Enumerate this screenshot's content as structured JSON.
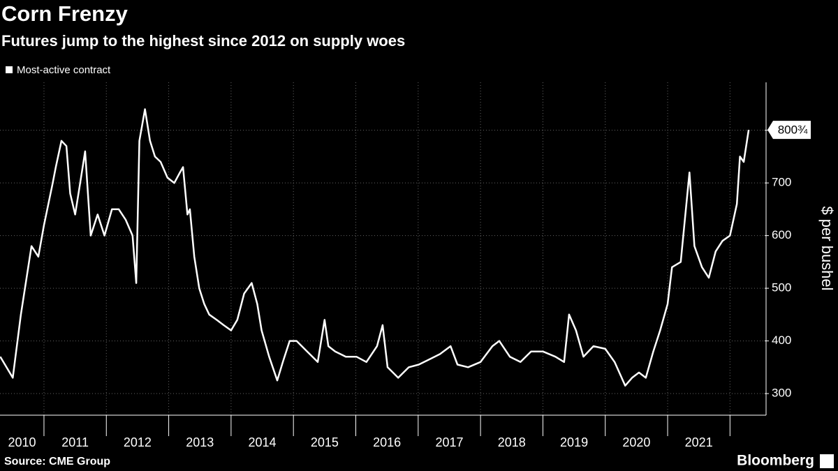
{
  "chart_data": {
    "type": "line",
    "title": "Corn Frenzy",
    "subtitle": "Futures jump to the highest since 2012 on supply woes",
    "y_axis_label": "$ per bushel",
    "source": "Source: CME Group",
    "brand": "Bloomberg",
    "end_label": "800¾",
    "series": [
      {
        "name": "Most-active contract",
        "color": "#ffffff",
        "x": [
          2010.3,
          2010.5,
          2010.63,
          2010.8,
          2010.91,
          2011.0,
          2011.14,
          2011.19,
          2011.28,
          2011.36,
          2011.42,
          2011.5,
          2011.58,
          2011.66,
          2011.75,
          2011.86,
          2011.97,
          2012.09,
          2012.2,
          2012.31,
          2012.42,
          2012.48,
          2012.53,
          2012.62,
          2012.7,
          2012.78,
          2012.87,
          2012.98,
          2013.09,
          2013.18,
          2013.23,
          2013.3,
          2013.34,
          2013.41,
          2013.49,
          2013.57,
          2013.65,
          2013.77,
          2013.88,
          2014.0,
          2014.1,
          2014.21,
          2014.33,
          2014.42,
          2014.49,
          2014.61,
          2014.74,
          2014.83,
          2014.94,
          2015.05,
          2015.22,
          2015.39,
          2015.5,
          2015.56,
          2015.67,
          2015.84,
          2016.01,
          2016.17,
          2016.34,
          2016.43,
          2016.51,
          2016.68,
          2016.85,
          2017.01,
          2017.18,
          2017.35,
          2017.52,
          2017.63,
          2017.8,
          2018.0,
          2018.19,
          2018.3,
          2018.47,
          2018.64,
          2018.81,
          2019.0,
          2019.2,
          2019.34,
          2019.42,
          2019.53,
          2019.65,
          2019.81,
          2020.0,
          2020.15,
          2020.32,
          2020.43,
          2020.54,
          2020.65,
          2020.77,
          2020.88,
          2021.0,
          2021.07,
          2021.21,
          2021.35,
          2021.43,
          2021.55,
          2021.66,
          2021.77,
          2021.88,
          2022.0,
          2022.11,
          2022.16,
          2022.22,
          2022.3
        ],
        "values": [
          370,
          330,
          450,
          580,
          560,
          620,
          700,
          730,
          780,
          770,
          680,
          640,
          700,
          760,
          600,
          640,
          600,
          650,
          650,
          630,
          600,
          510,
          780,
          840,
          780,
          750,
          740,
          710,
          700,
          720,
          730,
          640,
          650,
          560,
          500,
          470,
          450,
          440,
          430,
          420,
          440,
          490,
          510,
          470,
          420,
          370,
          325,
          360,
          400,
          400,
          380,
          360,
          440,
          390,
          380,
          370,
          370,
          360,
          390,
          430,
          350,
          330,
          350,
          355,
          365,
          375,
          390,
          355,
          350,
          360,
          390,
          400,
          370,
          360,
          380,
          380,
          370,
          360,
          450,
          420,
          370,
          390,
          385,
          360,
          315,
          330,
          340,
          330,
          380,
          420,
          470,
          540,
          550,
          720,
          580,
          540,
          520,
          570,
          590,
          600,
          660,
          750,
          740,
          800.75
        ]
      }
    ],
    "xlim": [
      2010.295,
      2022.556
    ],
    "xticks": [
      {
        "value": 2010,
        "label": "2010"
      },
      {
        "value": 2011,
        "label": "2011"
      },
      {
        "value": 2012,
        "label": "2012"
      },
      {
        "value": 2013,
        "label": "2013"
      },
      {
        "value": 2014,
        "label": "2014"
      },
      {
        "value": 2015,
        "label": "2015"
      },
      {
        "value": 2016,
        "label": "2016"
      },
      {
        "value": 2017,
        "label": "2017"
      },
      {
        "value": 2018,
        "label": "2018"
      },
      {
        "value": 2019,
        "label": "2019"
      },
      {
        "value": 2020,
        "label": "2020"
      },
      {
        "value": 2021,
        "label": "2021"
      },
      {
        "value": 2022,
        "label": null
      }
    ],
    "ylim": [
      259,
      891
    ],
    "yticks": [
      300,
      400,
      500,
      600,
      700,
      800
    ],
    "grid": true
  }
}
